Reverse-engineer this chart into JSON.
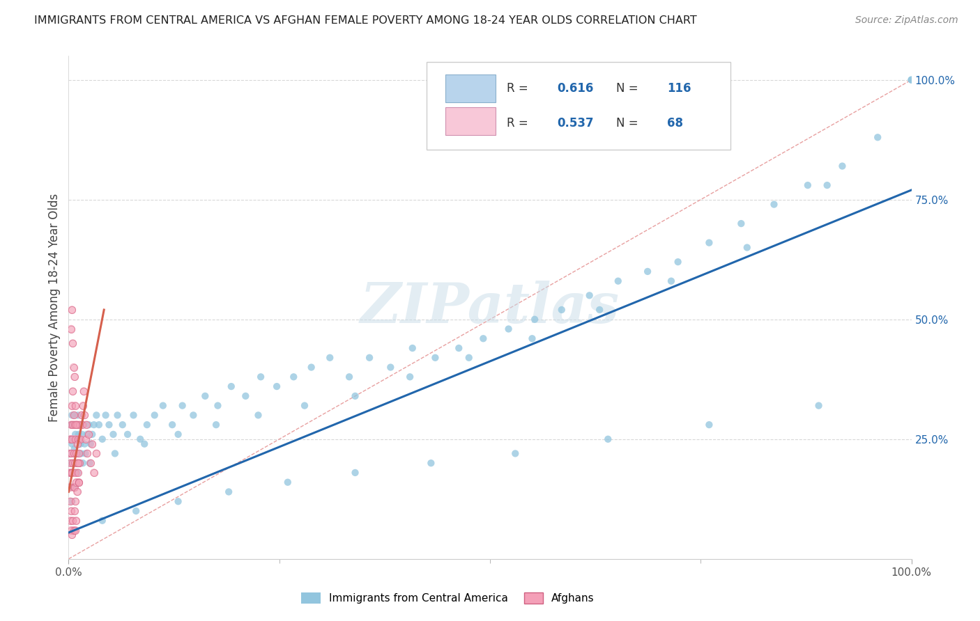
{
  "title": "IMMIGRANTS FROM CENTRAL AMERICA VS AFGHAN FEMALE POVERTY AMONG 18-24 YEAR OLDS CORRELATION CHART",
  "source": "Source: ZipAtlas.com",
  "ylabel": "Female Poverty Among 18-24 Year Olds",
  "blue_R": "0.616",
  "blue_N": "116",
  "pink_R": "0.537",
  "pink_N": "68",
  "blue_dot_color": "#92c5de",
  "pink_dot_color": "#f4a0b8",
  "blue_line_color": "#2166ac",
  "pink_line_color": "#d6604d",
  "diag_line_color": "#e8a0a0",
  "legend_blue_face": "#b8d4ec",
  "legend_pink_face": "#f8c8d8",
  "watermark_color": "#c8dce8",
  "title_color": "#222222",
  "source_color": "#888888",
  "ylabel_color": "#444444",
  "tick_color_right": "#2166ac",
  "tick_color_bottom": "#555555",
  "blue_label": "Immigrants from Central America",
  "pink_label": "Afghans",
  "blue_scatter_x": [
    0.001,
    0.002,
    0.002,
    0.003,
    0.003,
    0.003,
    0.004,
    0.004,
    0.004,
    0.005,
    0.005,
    0.005,
    0.006,
    0.006,
    0.007,
    0.007,
    0.007,
    0.008,
    0.008,
    0.008,
    0.009,
    0.009,
    0.01,
    0.01,
    0.011,
    0.011,
    0.012,
    0.012,
    0.013,
    0.013,
    0.014,
    0.015,
    0.016,
    0.017,
    0.018,
    0.019,
    0.02,
    0.022,
    0.024,
    0.026,
    0.028,
    0.03,
    0.033,
    0.036,
    0.04,
    0.044,
    0.048,
    0.053,
    0.058,
    0.064,
    0.07,
    0.077,
    0.085,
    0.093,
    0.102,
    0.112,
    0.123,
    0.135,
    0.148,
    0.162,
    0.177,
    0.193,
    0.21,
    0.228,
    0.247,
    0.267,
    0.288,
    0.31,
    0.333,
    0.357,
    0.382,
    0.408,
    0.435,
    0.463,
    0.492,
    0.522,
    0.553,
    0.585,
    0.618,
    0.652,
    0.687,
    0.723,
    0.76,
    0.798,
    0.837,
    0.877,
    0.918,
    0.96,
    1.0,
    0.025,
    0.055,
    0.09,
    0.13,
    0.175,
    0.225,
    0.28,
    0.34,
    0.405,
    0.475,
    0.55,
    0.63,
    0.715,
    0.805,
    0.9,
    1.0,
    0.04,
    0.08,
    0.13,
    0.19,
    0.26,
    0.34,
    0.43,
    0.53,
    0.64,
    0.76,
    0.89
  ],
  "blue_scatter_y": [
    0.22,
    0.18,
    0.25,
    0.15,
    0.2,
    0.28,
    0.12,
    0.24,
    0.3,
    0.18,
    0.25,
    0.22,
    0.2,
    0.28,
    0.15,
    0.23,
    0.3,
    0.18,
    0.26,
    0.22,
    0.2,
    0.28,
    0.22,
    0.25,
    0.18,
    0.3,
    0.22,
    0.26,
    0.2,
    0.28,
    0.24,
    0.22,
    0.26,
    0.2,
    0.28,
    0.24,
    0.22,
    0.26,
    0.28,
    0.24,
    0.26,
    0.28,
    0.3,
    0.28,
    0.25,
    0.3,
    0.28,
    0.26,
    0.3,
    0.28,
    0.26,
    0.3,
    0.25,
    0.28,
    0.3,
    0.32,
    0.28,
    0.32,
    0.3,
    0.34,
    0.32,
    0.36,
    0.34,
    0.38,
    0.36,
    0.38,
    0.4,
    0.42,
    0.38,
    0.42,
    0.4,
    0.44,
    0.42,
    0.44,
    0.46,
    0.48,
    0.5,
    0.52,
    0.55,
    0.58,
    0.6,
    0.62,
    0.66,
    0.7,
    0.74,
    0.78,
    0.82,
    0.88,
    1.0,
    0.2,
    0.22,
    0.24,
    0.26,
    0.28,
    0.3,
    0.32,
    0.34,
    0.38,
    0.42,
    0.46,
    0.52,
    0.58,
    0.65,
    0.78,
    1.0,
    0.08,
    0.1,
    0.12,
    0.14,
    0.16,
    0.18,
    0.2,
    0.22,
    0.25,
    0.28,
    0.32
  ],
  "pink_scatter_x": [
    0.001,
    0.001,
    0.001,
    0.002,
    0.002,
    0.002,
    0.003,
    0.003,
    0.003,
    0.003,
    0.004,
    0.004,
    0.004,
    0.005,
    0.005,
    0.005,
    0.006,
    0.006,
    0.006,
    0.007,
    0.007,
    0.007,
    0.008,
    0.008,
    0.008,
    0.009,
    0.009,
    0.01,
    0.01,
    0.01,
    0.011,
    0.011,
    0.012,
    0.012,
    0.013,
    0.013,
    0.014,
    0.015,
    0.016,
    0.017,
    0.018,
    0.019,
    0.02,
    0.021,
    0.022,
    0.024,
    0.026,
    0.028,
    0.03,
    0.033,
    0.003,
    0.004,
    0.005,
    0.006,
    0.007,
    0.008,
    0.009,
    0.01,
    0.011,
    0.012,
    0.002,
    0.003,
    0.004,
    0.005,
    0.006,
    0.007,
    0.008,
    0.009
  ],
  "pink_scatter_y": [
    0.22,
    0.18,
    0.15,
    0.25,
    0.2,
    0.12,
    0.28,
    0.22,
    0.18,
    0.1,
    0.32,
    0.25,
    0.18,
    0.35,
    0.28,
    0.2,
    0.3,
    0.22,
    0.15,
    0.28,
    0.2,
    0.15,
    0.25,
    0.18,
    0.12,
    0.22,
    0.16,
    0.28,
    0.2,
    0.14,
    0.25,
    0.18,
    0.22,
    0.16,
    0.28,
    0.2,
    0.25,
    0.3,
    0.28,
    0.32,
    0.35,
    0.3,
    0.25,
    0.28,
    0.22,
    0.26,
    0.2,
    0.24,
    0.18,
    0.22,
    0.48,
    0.52,
    0.45,
    0.4,
    0.38,
    0.32,
    0.28,
    0.24,
    0.2,
    0.16,
    0.08,
    0.06,
    0.05,
    0.08,
    0.06,
    0.1,
    0.06,
    0.08
  ],
  "blue_line": [
    0.0,
    0.055,
    1.0,
    0.77
  ],
  "pink_line": [
    0.0,
    0.14,
    0.042,
    0.52
  ],
  "diag_line": [
    0.0,
    0.0,
    1.0,
    1.0
  ],
  "xlim": [
    0.0,
    1.0
  ],
  "ylim": [
    0.0,
    1.05
  ],
  "xtick_vals": [
    0.0,
    1.0
  ],
  "xtick_labels": [
    "0.0%",
    "100.0%"
  ],
  "ytick_vals": [
    0.0,
    0.25,
    0.5,
    0.75,
    1.0
  ],
  "ytick_labels": [
    "",
    "25.0%",
    "50.0%",
    "75.0%",
    "100.0%"
  ]
}
